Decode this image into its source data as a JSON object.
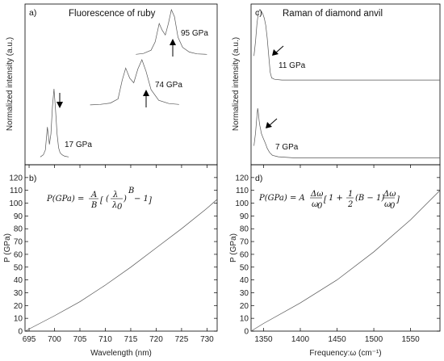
{
  "chart_data": [
    {
      "id": "a",
      "type": "line",
      "panel_label": "a)",
      "title": "Fluorescence of ruby",
      "ylabel": "Normalized intensity (a.u.)",
      "series": [
        {
          "name": "17 GPa",
          "x": [
            697.2,
            697.8,
            698.2,
            698.6,
            699.0,
            699.3,
            699.6,
            699.9,
            700.2,
            700.5,
            700.8,
            701.1,
            701.5,
            702.0,
            702.8
          ],
          "y": [
            0.02,
            0.05,
            0.12,
            0.45,
            0.2,
            0.35,
            0.75,
            1.0,
            0.7,
            0.35,
            0.15,
            0.08,
            0.05,
            0.03,
            0.02
          ]
        },
        {
          "name": "74 GPa",
          "x": [
            707.0,
            709.0,
            711.0,
            712.5,
            713.3,
            714.0,
            714.8,
            715.6,
            716.4,
            717.2,
            718.0,
            719.0,
            720.5,
            722.5,
            724.5
          ],
          "y": [
            0.02,
            0.03,
            0.06,
            0.15,
            0.55,
            0.82,
            0.6,
            0.5,
            0.8,
            1.0,
            0.75,
            0.35,
            0.12,
            0.05,
            0.03
          ]
        },
        {
          "name": "95 GPa",
          "x": [
            716.0,
            717.5,
            719.0,
            719.8,
            720.6,
            721.2,
            721.8,
            722.4,
            723.0,
            723.6,
            724.3,
            725.2,
            726.5,
            728.0,
            730.0
          ],
          "y": [
            0.03,
            0.05,
            0.12,
            0.3,
            0.7,
            0.55,
            0.45,
            0.7,
            1.0,
            0.85,
            0.4,
            0.18,
            0.08,
            0.04,
            0.03
          ]
        }
      ],
      "annotations": [
        "17 GPa",
        "74 GPa",
        "95 GPa"
      ]
    },
    {
      "id": "c",
      "type": "line",
      "panel_label": "c)",
      "title": "Raman of diamond anvil",
      "ylabel": "Normalized intensity (a.u.)",
      "series": [
        {
          "name": "11 GPa",
          "x": [
            1337,
            1339,
            1341,
            1343,
            1345,
            1347,
            1349,
            1351,
            1353,
            1355,
            1357,
            1359,
            1361,
            1365,
            1375,
            1400,
            1450,
            1500,
            1550,
            1590
          ],
          "y": [
            0.35,
            0.55,
            0.8,
            0.97,
            1.0,
            0.98,
            0.94,
            0.88,
            0.78,
            0.6,
            0.35,
            0.12,
            0.04,
            0.02,
            0.01,
            0.01,
            0.01,
            0.01,
            0.01,
            0.01
          ]
        },
        {
          "name": "7 GPa",
          "x": [
            1337,
            1339,
            1341,
            1342,
            1343,
            1344,
            1345,
            1346,
            1347,
            1349,
            1351,
            1353,
            1355,
            1358,
            1362,
            1370,
            1390,
            1450,
            1520,
            1590
          ],
          "y": [
            0.25,
            0.5,
            0.85,
            1.0,
            0.9,
            0.75,
            0.65,
            0.58,
            0.5,
            0.42,
            0.35,
            0.28,
            0.2,
            0.12,
            0.06,
            0.03,
            0.01,
            0.01,
            0.01,
            0.01
          ]
        }
      ],
      "annotations": [
        "11 GPa",
        "7 GPa"
      ]
    },
    {
      "id": "b",
      "type": "line",
      "panel_label": "b)",
      "xlabel": "Wavelength (nm)",
      "ylabel": "P (GPa)",
      "xlim": [
        694.2,
        732.0
      ],
      "ylim": [
        0,
        130
      ],
      "xticks": [
        695,
        700,
        705,
        710,
        715,
        720,
        725,
        730
      ],
      "yticks": [
        0,
        10,
        20,
        30,
        40,
        50,
        60,
        70,
        80,
        90,
        100,
        110,
        120
      ],
      "formula": "P(GPa) = A/B [ (λ/λ0)^B − 1 ]",
      "series": [
        {
          "x": [
            694.2,
            700,
            705,
            710,
            715,
            720,
            725,
            730,
            732
          ],
          "y": [
            0,
            12,
            23,
            36,
            50,
            65,
            80,
            96,
            103
          ]
        }
      ]
    },
    {
      "id": "d",
      "type": "line",
      "panel_label": "d)",
      "xlabel": "Frequency:ω (cm⁻¹)",
      "ylabel": "P (GPa)",
      "xlim": [
        1333,
        1590
      ],
      "ylim": [
        0,
        130
      ],
      "xticks": [
        1350,
        1400,
        1450,
        1500,
        1550
      ],
      "yticks": [
        0,
        10,
        20,
        30,
        40,
        50,
        60,
        70,
        80,
        90,
        100,
        110,
        120
      ],
      "formula": "P(GPa) = A Δω/ω0 [1 + ½(B − 1) Δω/ω0]",
      "series": [
        {
          "x": [
            1333,
            1350,
            1400,
            1450,
            1500,
            1550,
            1590
          ],
          "y": [
            0,
            6,
            22,
            40,
            62,
            87,
            110
          ]
        }
      ]
    }
  ],
  "formula_b": {
    "lhs": "P(GPa) =",
    "frac_num": "A",
    "frac_den": "B",
    "inner": "(λ/λ",
    "sub": "0",
    "sup": "B",
    "tail": "− 1"
  },
  "formula_d": {
    "lhs": "P(GPa) = A",
    "frac_num": "Δω",
    "frac_den": "ω",
    "sub": "0",
    "mid": "1 +",
    "half_num": "1",
    "half_den": "2",
    "b": "(B − 1)"
  }
}
